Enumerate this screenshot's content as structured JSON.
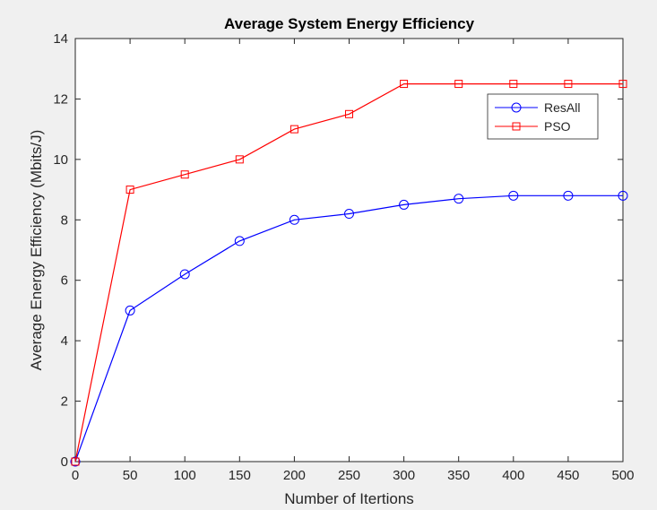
{
  "chart_data": {
    "type": "line",
    "title": "Average System Energy Efficiency",
    "xlabel": "Number of Itertions",
    "ylabel": "Average Energy Efficiency (Mbits/J)",
    "xlim": [
      0,
      500
    ],
    "ylim": [
      0,
      14
    ],
    "xticks": [
      0,
      50,
      100,
      150,
      200,
      250,
      300,
      350,
      400,
      450,
      500
    ],
    "yticks": [
      0,
      2,
      4,
      6,
      8,
      10,
      12,
      14
    ],
    "grid": false,
    "legend_position": "top-right",
    "x": [
      0,
      50,
      100,
      150,
      200,
      250,
      300,
      350,
      400,
      450,
      500
    ],
    "series": [
      {
        "name": "ResAll",
        "color": "#0000ff",
        "marker": "circle",
        "values": [
          0,
          5.0,
          6.2,
          7.3,
          8.0,
          8.2,
          8.5,
          8.7,
          8.8,
          8.8,
          8.8
        ]
      },
      {
        "name": "PSO",
        "color": "#ff0000",
        "marker": "square",
        "values": [
          0,
          9.0,
          9.5,
          10.0,
          11.0,
          11.5,
          12.5,
          12.5,
          12.5,
          12.5,
          12.5
        ]
      }
    ]
  }
}
